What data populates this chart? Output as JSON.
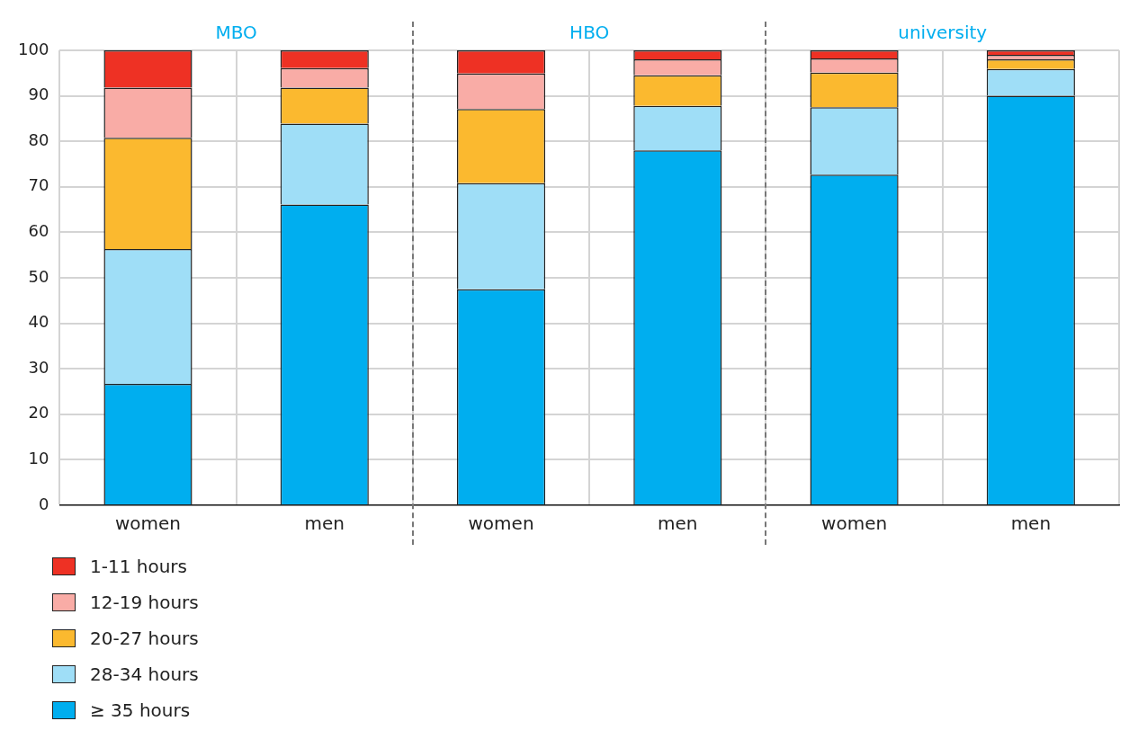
{
  "chart_data": {
    "type": "bar",
    "stacked": true,
    "categories": [
      "women",
      "men",
      "women",
      "men",
      "women",
      "men"
    ],
    "series": [
      {
        "name": "≥ 35 hours",
        "color": "#00aeef",
        "values": [
          26.7,
          66.1,
          47.5,
          78.0,
          72.7,
          90.0
        ]
      },
      {
        "name": "28-34 hours",
        "color": "#9fdef7",
        "values": [
          29.6,
          17.8,
          23.3,
          9.8,
          14.8,
          5.9
        ]
      },
      {
        "name": "20-27 hours",
        "color": "#fbb92f",
        "values": [
          24.5,
          7.9,
          16.3,
          6.7,
          7.6,
          2.1
        ]
      },
      {
        "name": "12-19 hours",
        "color": "#f9aca6",
        "values": [
          11.0,
          4.3,
          7.8,
          3.5,
          3.1,
          1.0
        ]
      },
      {
        "name": "1-11 hours",
        "color": "#ee3124",
        "values": [
          8.2,
          3.9,
          5.1,
          2.0,
          1.8,
          1.0
        ]
      }
    ],
    "annotations": [
      "MBO",
      "HBO",
      "university"
    ],
    "ylim": [
      0,
      100
    ],
    "yticks": [
      0,
      10,
      20,
      30,
      40,
      50,
      60,
      70,
      80,
      90,
      100
    ],
    "grid": true,
    "legend": "bottom left"
  }
}
